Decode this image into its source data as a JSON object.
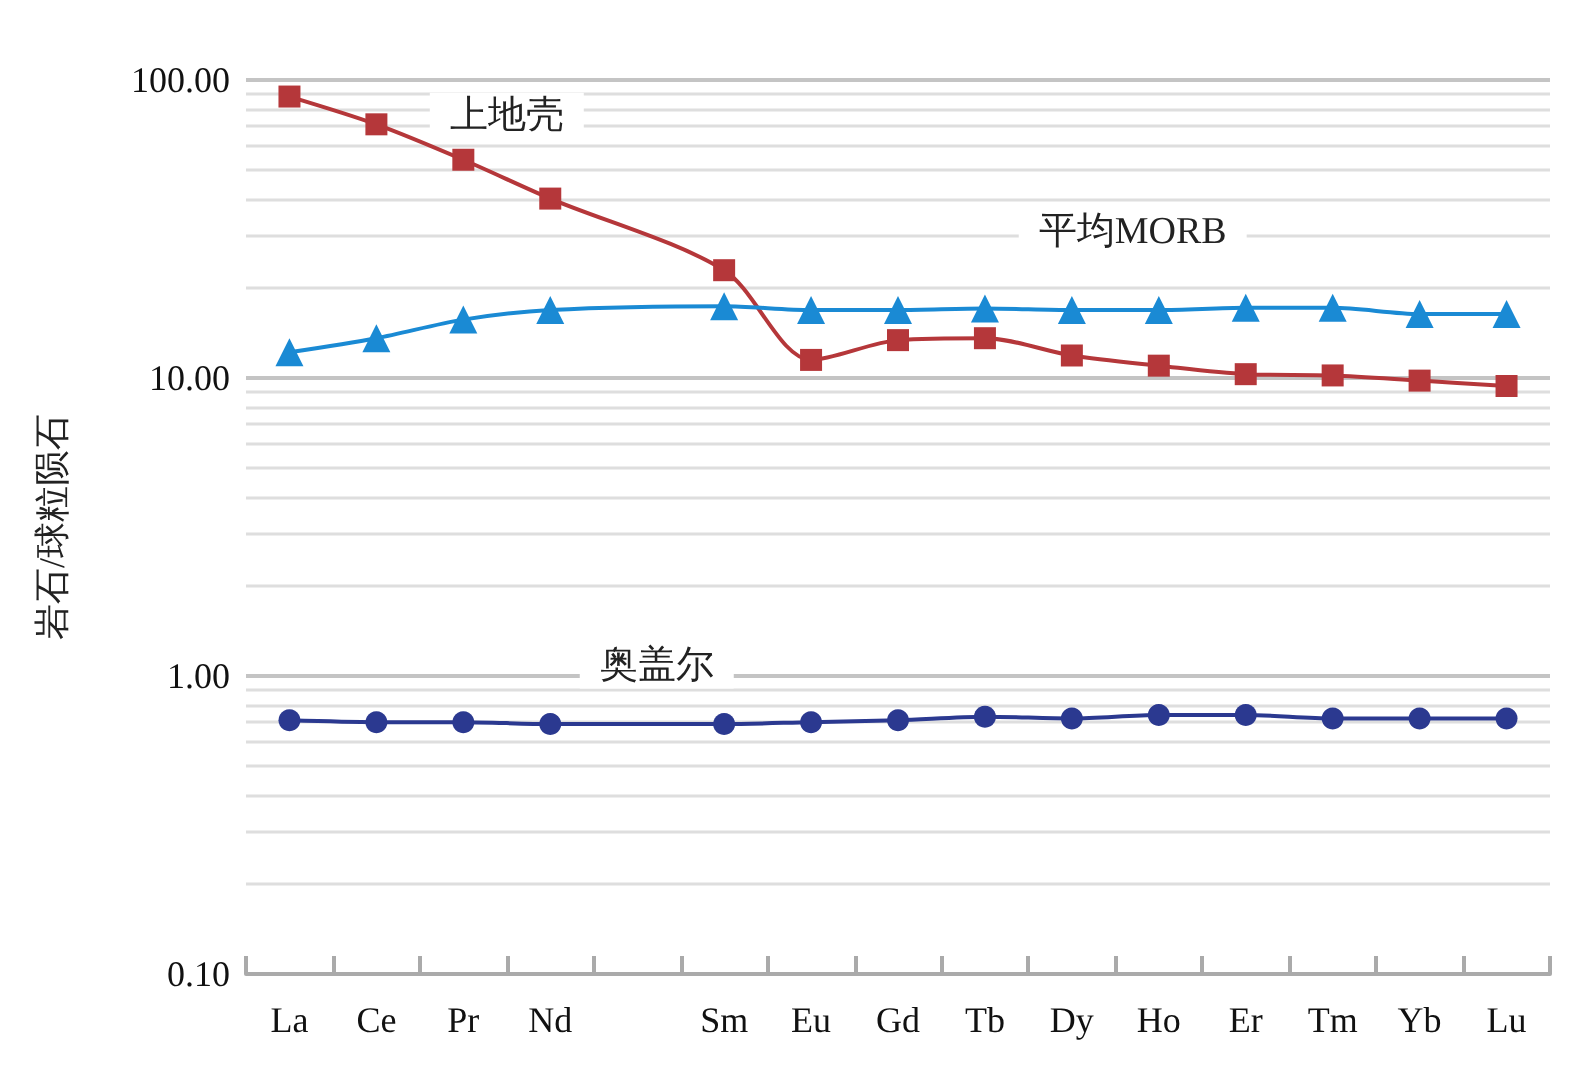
{
  "chart_data": {
    "type": "line",
    "ylabel": "岩石/球粒陨石",
    "categories": [
      "La",
      "Ce",
      "Pr",
      "Nd",
      null,
      "Sm",
      "Eu",
      "Gd",
      "Tb",
      "Dy",
      "Ho",
      "Er",
      "Tm",
      "Yb",
      "Lu"
    ],
    "series": [
      {
        "name": "上地壳",
        "color": "#b5373a",
        "marker": "square",
        "values": [
          88,
          71,
          54,
          40,
          null,
          23,
          11.5,
          13.4,
          13.6,
          11.9,
          11,
          10.3,
          10.2,
          9.8,
          9.4
        ]
      },
      {
        "name": "平均MORB",
        "color": "#1a8ad4",
        "marker": "triangle",
        "values": [
          12.2,
          13.6,
          15.7,
          16.9,
          null,
          17.4,
          16.9,
          16.9,
          17.1,
          16.9,
          16.9,
          17.2,
          17.2,
          16.4,
          16.4
        ]
      },
      {
        "name": "奥盖尔",
        "color": "#2b3990",
        "marker": "circle",
        "values": [
          0.71,
          0.7,
          0.7,
          0.69,
          null,
          0.69,
          0.7,
          0.71,
          0.73,
          0.72,
          0.74,
          0.74,
          0.72,
          0.72,
          0.72
        ]
      }
    ],
    "log": true,
    "ylim": [
      0.1,
      100
    ],
    "yticks": [
      {
        "value": 0.1,
        "label": "0.10"
      },
      {
        "value": 1,
        "label": "1.00"
      },
      {
        "value": 10,
        "label": "10.00"
      },
      {
        "value": 100,
        "label": "100.00"
      }
    ],
    "grid": "y",
    "legend": false,
    "line_style": "solid"
  }
}
